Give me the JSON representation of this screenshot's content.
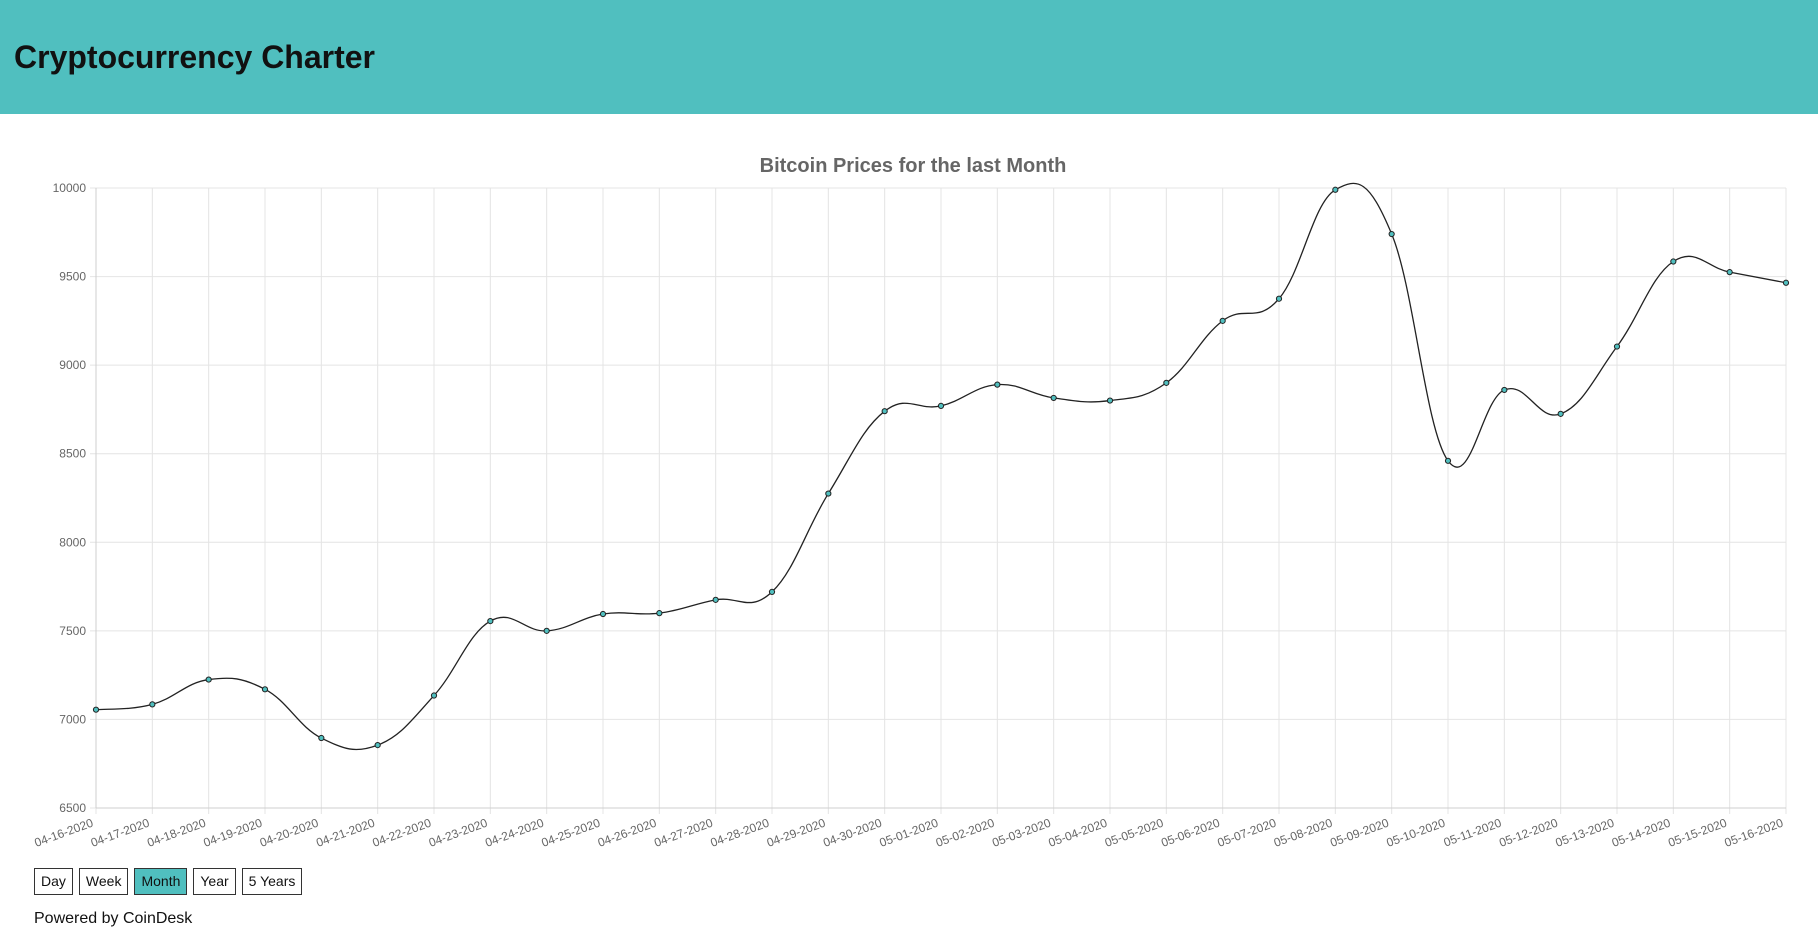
{
  "header": {
    "title": "Cryptocurrency Charter",
    "background_color": "#50bfbf"
  },
  "range_buttons": [
    {
      "label": "Day",
      "active": false
    },
    {
      "label": "Week",
      "active": false
    },
    {
      "label": "Month",
      "active": true
    },
    {
      "label": "Year",
      "active": false
    },
    {
      "label": "5 Years",
      "active": false
    }
  ],
  "footer": {
    "powered_by": "Powered by CoinDesk"
  },
  "chart_data": {
    "type": "line",
    "title": "Bitcoin Prices for the last Month",
    "xlabel": "",
    "ylabel": "",
    "ylim": [
      6500,
      10000
    ],
    "yticks": [
      6500,
      7000,
      7500,
      8000,
      8500,
      9000,
      9500,
      10000
    ],
    "grid": true,
    "line_color": "#222222",
    "point_fill": "#50bfbf",
    "categories": [
      "04-16-2020",
      "04-17-2020",
      "04-18-2020",
      "04-19-2020",
      "04-20-2020",
      "04-21-2020",
      "04-22-2020",
      "04-23-2020",
      "04-24-2020",
      "04-25-2020",
      "04-26-2020",
      "04-27-2020",
      "04-28-2020",
      "04-29-2020",
      "04-30-2020",
      "05-01-2020",
      "05-02-2020",
      "05-03-2020",
      "05-04-2020",
      "05-05-2020",
      "05-06-2020",
      "05-07-2020",
      "05-08-2020",
      "05-09-2020",
      "05-10-2020",
      "05-11-2020",
      "05-12-2020",
      "05-13-2020",
      "05-14-2020",
      "05-15-2020",
      "05-16-2020"
    ],
    "series": [
      {
        "name": "Bitcoin",
        "values": [
          7055,
          7085,
          7225,
          7170,
          6895,
          6855,
          7135,
          7555,
          7500,
          7595,
          7600,
          7675,
          7720,
          8275,
          8740,
          8770,
          8890,
          8815,
          8800,
          8900,
          9250,
          9375,
          9990,
          9740,
          8460,
          8860,
          8725,
          9105,
          9585,
          9525,
          9465
        ]
      }
    ]
  }
}
